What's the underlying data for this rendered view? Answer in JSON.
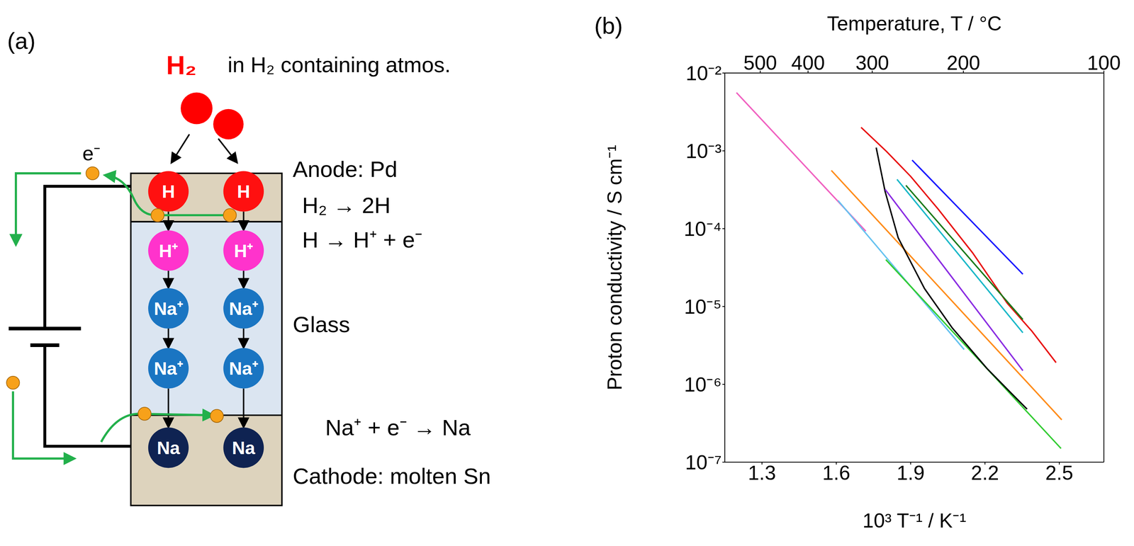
{
  "diagram": {
    "panel_label": "(a)",
    "gas": "H₂",
    "gas_note": "in H₂ containing atmos.",
    "electron": "e⁻",
    "anode": {
      "label": "Anode: Pd",
      "reactions": [
        "H₂ → 2H",
        "H → H⁺ + e⁻"
      ]
    },
    "electrolyte": {
      "label": "Glass"
    },
    "cathode": {
      "label": "Cathode: molten Sn",
      "reaction": "Na⁺ + e⁻ → Na"
    },
    "species": {
      "hydrogen": "H",
      "proton": "H⁺",
      "sodium_ion": "Na⁺",
      "sodium": "Na"
    }
  },
  "chart_data": {
    "type": "line",
    "panel_label": "(b)",
    "xlabel": "10³ T⁻¹  /  K⁻¹",
    "ylabel": "Proton conductivity  /  S cm⁻¹",
    "x2label": "Temperature, T  /  °C",
    "log": "y",
    "grid": false,
    "xlim": [
      1.15,
      2.68
    ],
    "xticks": [
      1.3,
      1.6,
      1.9,
      2.2,
      2.5
    ],
    "x2ticks": [
      {
        "value": 1.293,
        "label": "500"
      },
      {
        "value": 1.486,
        "label": "400"
      },
      {
        "value": 1.745,
        "label": "300"
      },
      {
        "value": 2.113,
        "label": "200"
      },
      {
        "value": 2.68,
        "label": "100"
      }
    ],
    "ylim": [
      1e-07,
      0.01
    ],
    "yticks": [
      {
        "value": 1e-07,
        "label": "10⁻⁷"
      },
      {
        "value": 1e-06,
        "label": "10⁻⁶"
      },
      {
        "value": 1e-05,
        "label": "10⁻⁵"
      },
      {
        "value": 0.0001,
        "label": "10⁻⁴"
      },
      {
        "value": 0.001,
        "label": "10⁻³"
      },
      {
        "value": 0.01,
        "label": "10⁻²"
      }
    ],
    "series": [
      {
        "color": "#f060c0",
        "x": [
          1.197,
          1.719
        ],
        "values": [
          0.0056,
          9.3e-05
        ]
      },
      {
        "color": "#66c2f0",
        "x": [
          1.607,
          2.116
        ],
        "values": [
          0.00023,
          2.8e-06
        ]
      },
      {
        "color": "#ff8c1a",
        "x": [
          1.58,
          2.51
        ],
        "values": [
          0.00056,
          3.5e-07
        ]
      },
      {
        "color": "#33cc33",
        "x": [
          1.8,
          2.507
        ],
        "values": [
          4e-05,
          1.5e-07
        ]
      },
      {
        "color": "#000000",
        "x": [
          1.761,
          1.797,
          1.85,
          1.956,
          2.068,
          2.208,
          2.306,
          2.37
        ],
        "values": [
          0.0011,
          0.0003,
          7.6e-05,
          1.7e-05,
          5.3e-06,
          1.6e-06,
          7.7e-07,
          4.8e-07
        ]
      },
      {
        "color": "#e81010",
        "x": [
          1.7,
          1.803,
          1.9,
          2.01,
          2.15,
          2.29,
          2.39,
          2.487
        ],
        "values": [
          0.002,
          0.00098,
          0.00047,
          0.00018,
          4.9e-05,
          1.1e-05,
          4.8e-06,
          1.9e-06
        ]
      },
      {
        "color": "#1a1aff",
        "x": [
          1.906,
          2.353
        ],
        "values": [
          0.00076,
          2.6e-05
        ]
      },
      {
        "color": "#1a7a1a",
        "x": [
          1.881,
          2.353
        ],
        "values": [
          0.00036,
          6.8e-06
        ]
      },
      {
        "color": "#1ab8c8",
        "x": [
          1.845,
          2.353
        ],
        "values": [
          0.00043,
          4.6e-06
        ]
      },
      {
        "color": "#8a2be2",
        "x": [
          1.797,
          2.353
        ],
        "values": [
          0.00032,
          1.5e-06
        ]
      }
    ]
  }
}
